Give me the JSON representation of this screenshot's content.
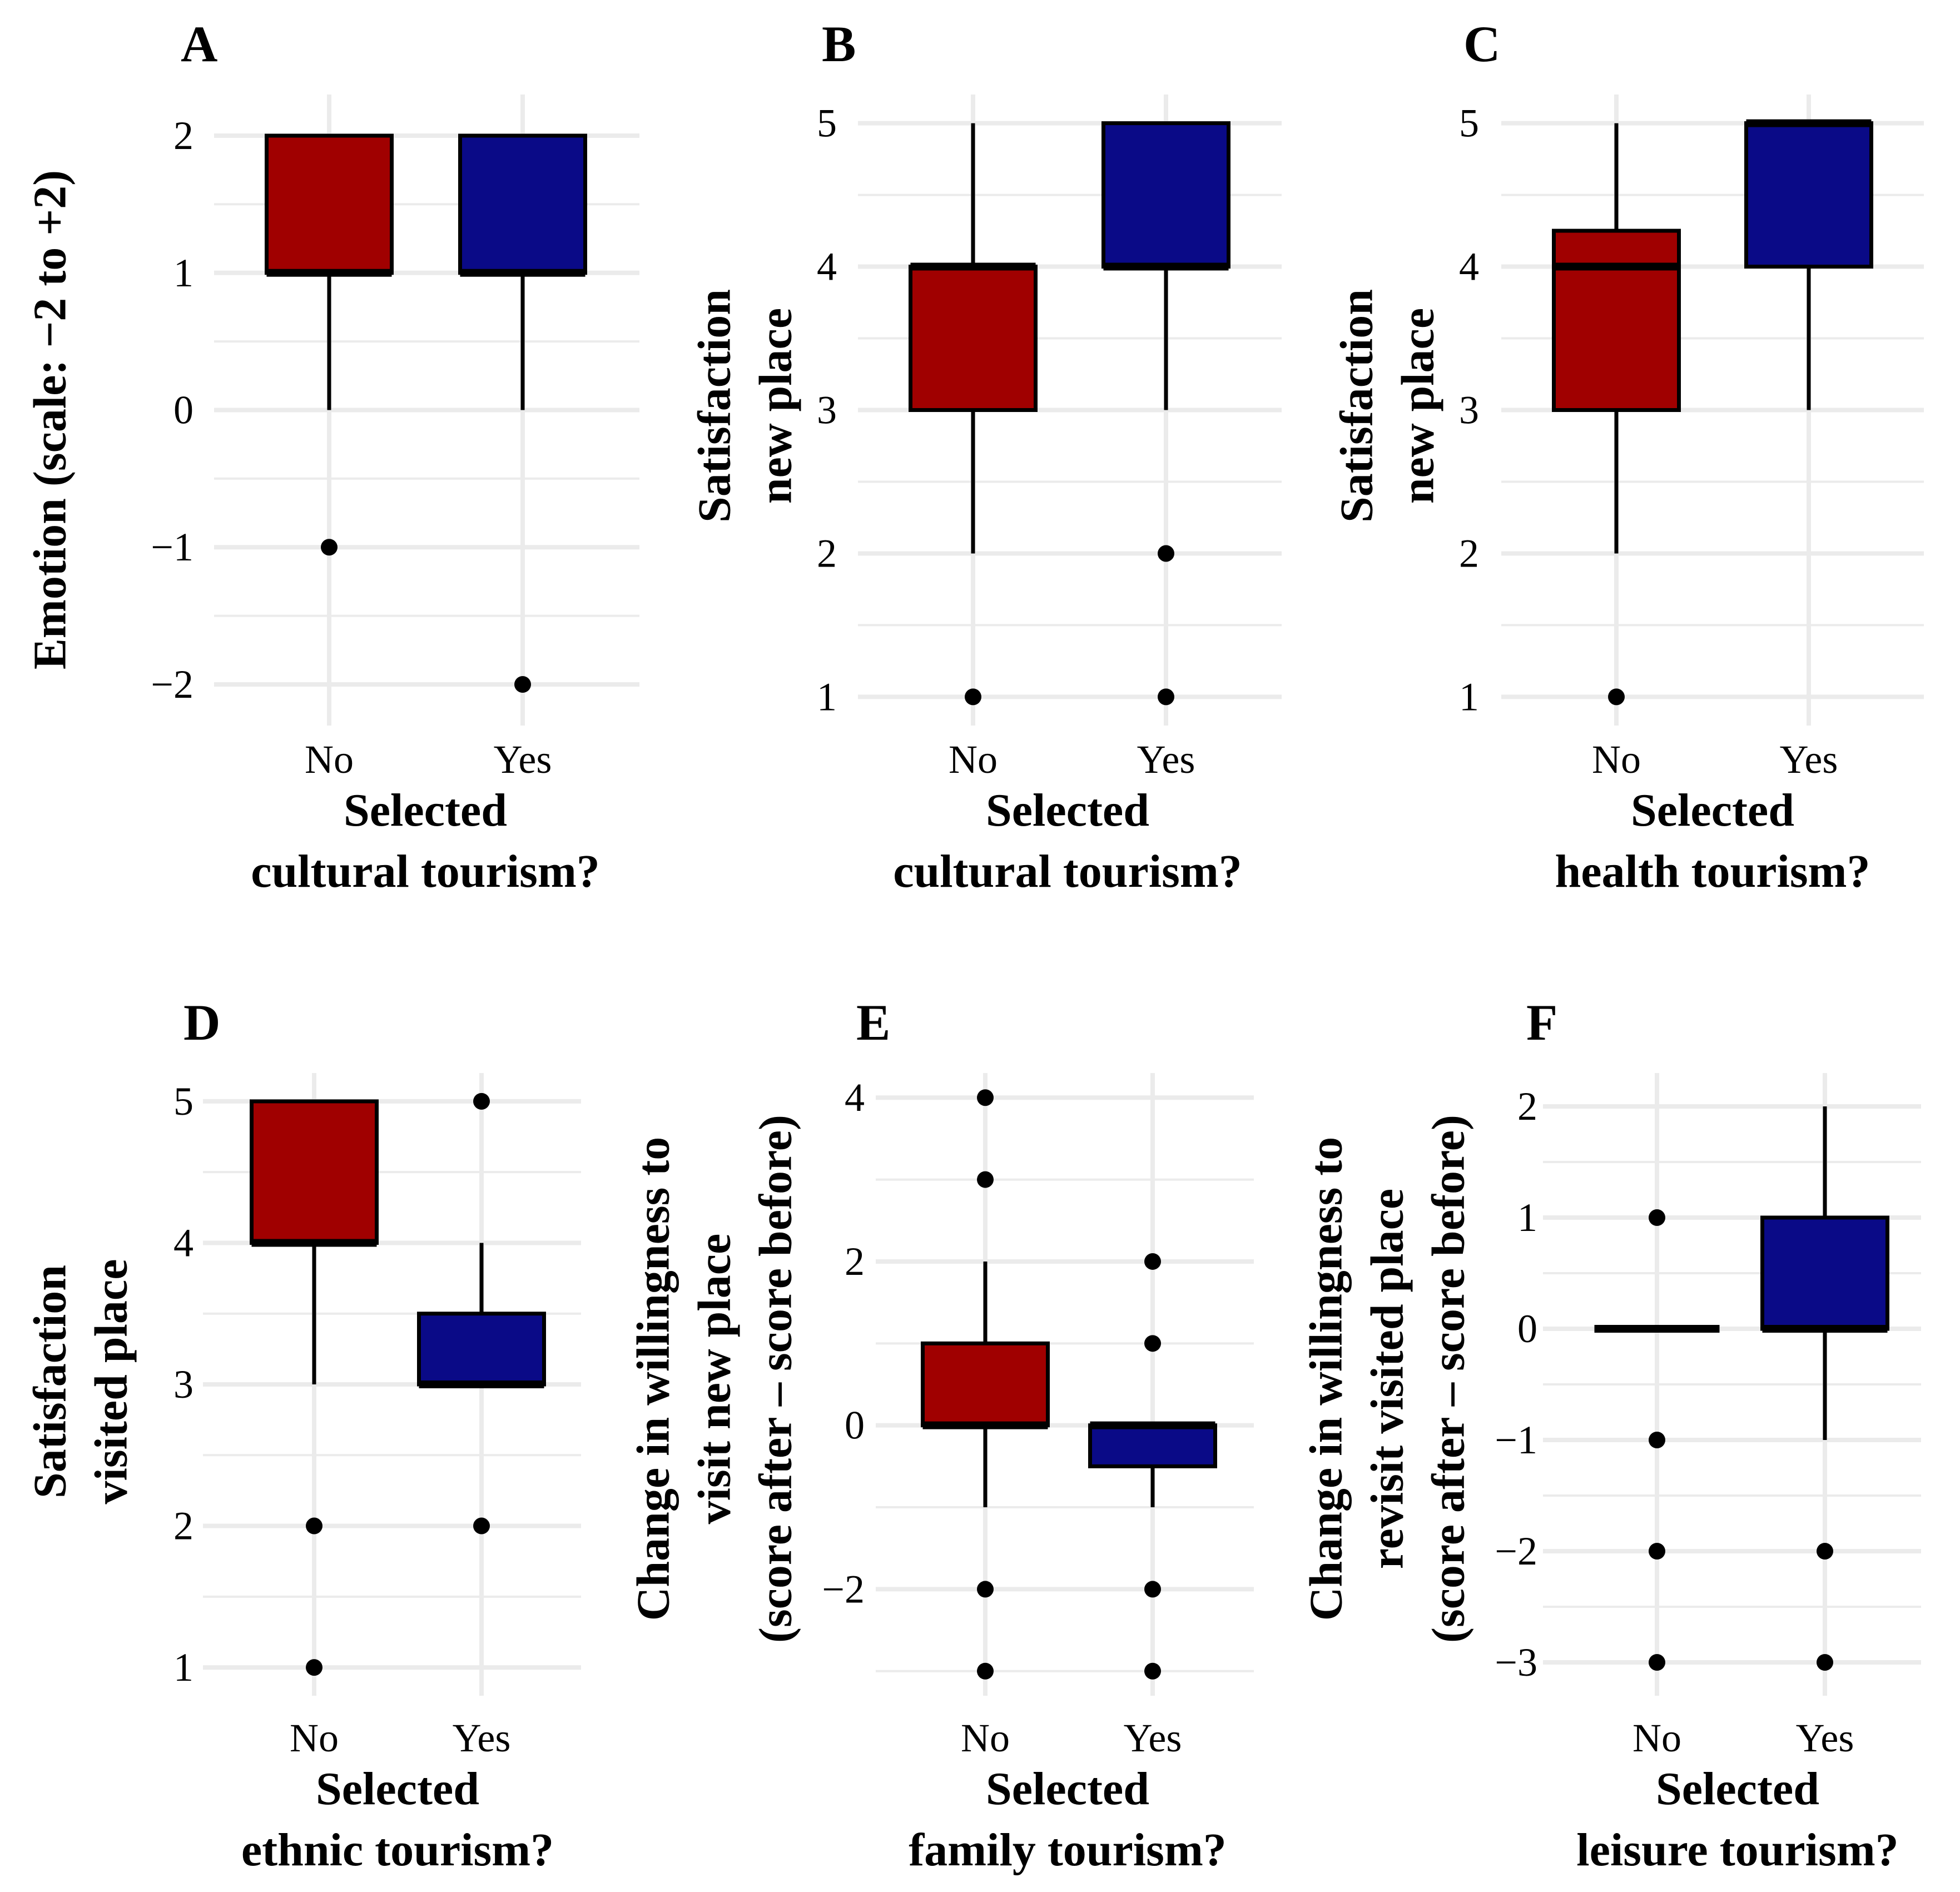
{
  "colors": {
    "no": "#a00000",
    "yes": "#0a0a87",
    "grid": "#ebebeb",
    "stroke": "#000000"
  },
  "chart_data": [
    {
      "panel": "A",
      "type": "boxplot",
      "categories": [
        "No",
        "Yes"
      ],
      "xlabel": [
        "Selected",
        "cultural tourism?"
      ],
      "ylabel": [
        "Emotion (scale: −2 to +2)"
      ],
      "ylim": [
        -2.3,
        2.3
      ],
      "yticks": [
        2,
        1,
        0,
        -1,
        -2
      ],
      "ytick_labels": [
        "2",
        "1",
        "0",
        "−1",
        "−2"
      ],
      "boxes": [
        {
          "name": "No",
          "q1": 1,
          "median": 1,
          "q3": 2,
          "whisker_low": 0,
          "whisker_high": 2,
          "outliers": [
            -1
          ]
        },
        {
          "name": "Yes",
          "q1": 1,
          "median": 1,
          "q3": 2,
          "whisker_low": 0,
          "whisker_high": 2,
          "outliers": [
            -2
          ]
        }
      ]
    },
    {
      "panel": "B",
      "type": "boxplot",
      "categories": [
        "No",
        "Yes"
      ],
      "xlabel": [
        "Selected",
        "cultural tourism?"
      ],
      "ylabel": [
        "Satisfaction",
        "new place"
      ],
      "ylim": [
        0.8,
        5.2
      ],
      "yticks": [
        5,
        4,
        3,
        2,
        1
      ],
      "ytick_labels": [
        "5",
        "4",
        "3",
        "2",
        "1"
      ],
      "boxes": [
        {
          "name": "No",
          "q1": 3,
          "median": 4,
          "q3": 4,
          "whisker_low": 2,
          "whisker_high": 5,
          "outliers": [
            1
          ]
        },
        {
          "name": "Yes",
          "q1": 4,
          "median": 4,
          "q3": 5,
          "whisker_low": 3,
          "whisker_high": 5,
          "outliers": [
            2,
            1
          ]
        }
      ]
    },
    {
      "panel": "C",
      "type": "boxplot",
      "categories": [
        "No",
        "Yes"
      ],
      "xlabel": [
        "Selected",
        "health tourism?"
      ],
      "ylabel": [
        "Satisfaction",
        "new place"
      ],
      "ylim": [
        0.8,
        5.2
      ],
      "yticks": [
        5,
        4,
        3,
        2,
        1
      ],
      "ytick_labels": [
        "5",
        "4",
        "3",
        "2",
        "1"
      ],
      "boxes": [
        {
          "name": "No",
          "q1": 3,
          "median": 4,
          "q3": 4.25,
          "whisker_low": 2,
          "whisker_high": 5,
          "outliers": [
            1
          ]
        },
        {
          "name": "Yes",
          "q1": 4,
          "median": 5,
          "q3": 5,
          "whisker_low": 3,
          "whisker_high": 5,
          "outliers": []
        }
      ]
    },
    {
      "panel": "D",
      "type": "boxplot",
      "categories": [
        "No",
        "Yes"
      ],
      "xlabel": [
        "Selected",
        "ethnic tourism?"
      ],
      "ylabel": [
        "Satisfaction",
        "visited place"
      ],
      "ylim": [
        0.8,
        5.2
      ],
      "yticks": [
        5,
        4,
        3,
        2,
        1
      ],
      "ytick_labels": [
        "5",
        "4",
        "3",
        "2",
        "1"
      ],
      "boxes": [
        {
          "name": "No",
          "q1": 4,
          "median": 4,
          "q3": 5,
          "whisker_low": 3,
          "whisker_high": 5,
          "outliers": [
            2,
            1
          ]
        },
        {
          "name": "Yes",
          "q1": 3,
          "median": 3,
          "q3": 3.5,
          "whisker_low": 3,
          "whisker_high": 4,
          "outliers": [
            5,
            2
          ]
        }
      ]
    },
    {
      "panel": "E",
      "type": "boxplot",
      "categories": [
        "No",
        "Yes"
      ],
      "xlabel": [
        "Selected",
        "family tourism?"
      ],
      "ylabel": [
        "Change in willingness to",
        "visit new place",
        "(score after – score before)"
      ],
      "ylim": [
        -3.3,
        4.3
      ],
      "yticks": [
        4,
        2,
        0,
        -2
      ],
      "ytick_labels": [
        "4",
        "2",
        "0",
        "−2"
      ],
      "boxes": [
        {
          "name": "No",
          "q1": 0,
          "median": 0,
          "q3": 1,
          "whisker_low": -1,
          "whisker_high": 2,
          "outliers": [
            4,
            3,
            -2,
            -3
          ]
        },
        {
          "name": "Yes",
          "q1": -0.5,
          "median": 0,
          "q3": 0,
          "whisker_low": -1,
          "whisker_high": 0,
          "outliers": [
            2,
            1,
            -2,
            -3
          ]
        }
      ]
    },
    {
      "panel": "F",
      "type": "boxplot",
      "categories": [
        "No",
        "Yes"
      ],
      "xlabel": [
        "Selected",
        "leisure tourism?"
      ],
      "ylabel": [
        "Change in willingness to",
        "revisit visited place",
        "(score after – score before)"
      ],
      "ylim": [
        -3.3,
        2.3
      ],
      "yticks": [
        2,
        1,
        0,
        -1,
        -2,
        -3
      ],
      "ytick_labels": [
        "2",
        "1",
        "0",
        "−1",
        "−2",
        "−3"
      ],
      "boxes": [
        {
          "name": "No",
          "q1": 0,
          "median": 0,
          "q3": 0,
          "whisker_low": 0,
          "whisker_high": 0,
          "outliers": [
            1,
            -1,
            -2,
            -3
          ]
        },
        {
          "name": "Yes",
          "q1": 0,
          "median": 0,
          "q3": 1,
          "whisker_low": -1,
          "whisker_high": 2,
          "outliers": [
            -2,
            -3
          ]
        }
      ]
    }
  ]
}
